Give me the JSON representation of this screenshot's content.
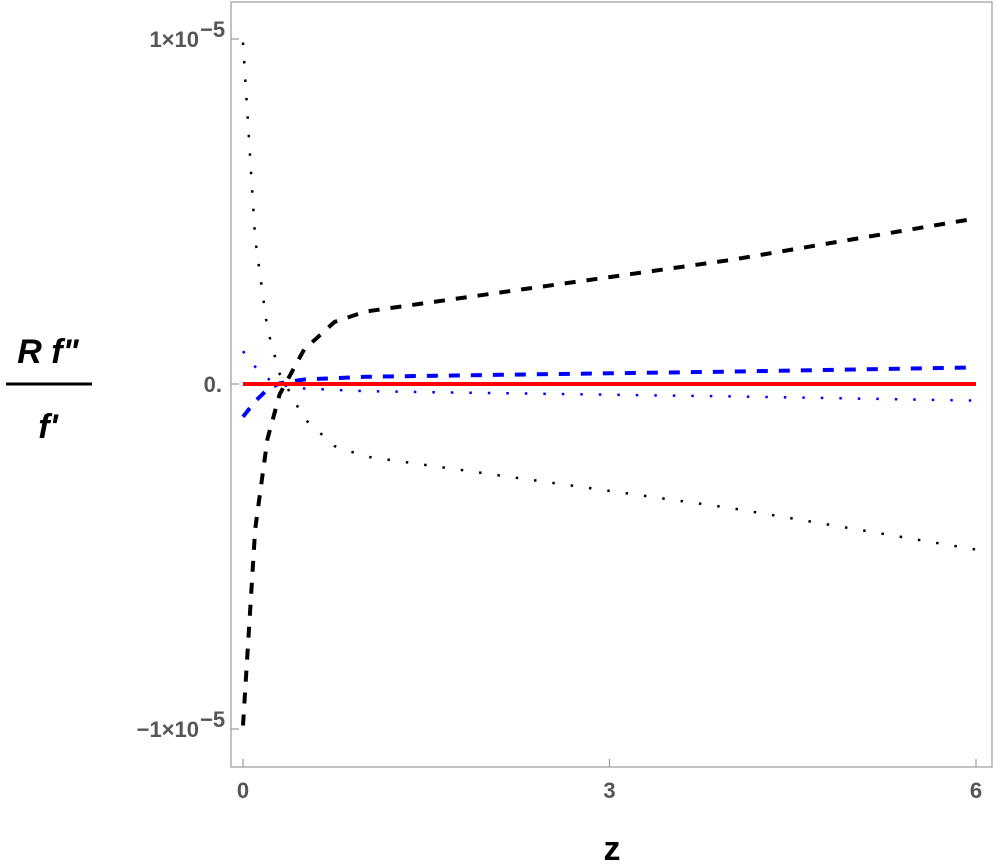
{
  "chart_data": {
    "type": "line",
    "xlabel": "z",
    "ylabel_numerator": "R f\"",
    "ylabel_denominator": "f'",
    "xlim": [
      0,
      6
    ],
    "ylim": [
      -1e-05,
      1e-05
    ],
    "x_ticks": [
      {
        "value": 0,
        "label": "0"
      },
      {
        "value": 3,
        "label": "3"
      },
      {
        "value": 6,
        "label": "6"
      }
    ],
    "y_ticks": [
      {
        "value": 1e-05,
        "label": "1×10",
        "exp": "−5"
      },
      {
        "value": 0,
        "label": "0.",
        "exp": ""
      },
      {
        "value": -1e-05,
        "label": "−1×10",
        "exp": "−5"
      }
    ],
    "grid": false,
    "series": [
      {
        "color": "#000000",
        "style": "dashed",
        "x": [
          0,
          0.1,
          0.2,
          0.3,
          0.5,
          0.75,
          1.0,
          2.0,
          3.0,
          4.0,
          5.0,
          6.0
        ],
        "y": [
          -9.9e-06,
          -4.2e-06,
          -1.6e-06,
          -3e-07,
          1e-06,
          1.8e-06,
          2.1e-06,
          2.6e-06,
          3.1e-06,
          3.6e-06,
          4.2e-06,
          4.8e-06
        ]
      },
      {
        "color": "#000000",
        "style": "dotted",
        "x": [
          0,
          0.1,
          0.2,
          0.3,
          0.5,
          0.75,
          1.0,
          2.0,
          3.0,
          4.0,
          5.0,
          6.0
        ],
        "y": [
          9.9e-06,
          4.2e-06,
          1.6e-06,
          3e-07,
          -1e-06,
          -1.8e-06,
          -2.1e-06,
          -2.6e-06,
          -3.1e-06,
          -3.6e-06,
          -4.2e-06,
          -4.8e-06
        ]
      },
      {
        "color": "#0000ff",
        "style": "dashed",
        "x": [
          0,
          0.1,
          0.2,
          0.3,
          0.5,
          1.0,
          2.0,
          3.0,
          4.0,
          5.0,
          6.0
        ],
        "y": [
          -9.5e-07,
          -5e-07,
          -1.6e-07,
          2e-08,
          1.3e-07,
          2.1e-07,
          2.6e-07,
          3.1e-07,
          3.6e-07,
          4.2e-07,
          4.8e-07
        ]
      },
      {
        "color": "#0000ff",
        "style": "dotted",
        "x": [
          0,
          0.1,
          0.2,
          0.3,
          0.5,
          1.0,
          2.0,
          3.0,
          4.0,
          5.0,
          6.0
        ],
        "y": [
          9.5e-07,
          5e-07,
          1.6e-07,
          -2e-08,
          -1.3e-07,
          -2.1e-07,
          -2.6e-07,
          -3.1e-07,
          -3.6e-07,
          -4.2e-07,
          -4.8e-07
        ]
      },
      {
        "color": "#ff0000",
        "style": "solid",
        "x": [
          0,
          6
        ],
        "y": [
          0,
          0
        ]
      }
    ]
  }
}
